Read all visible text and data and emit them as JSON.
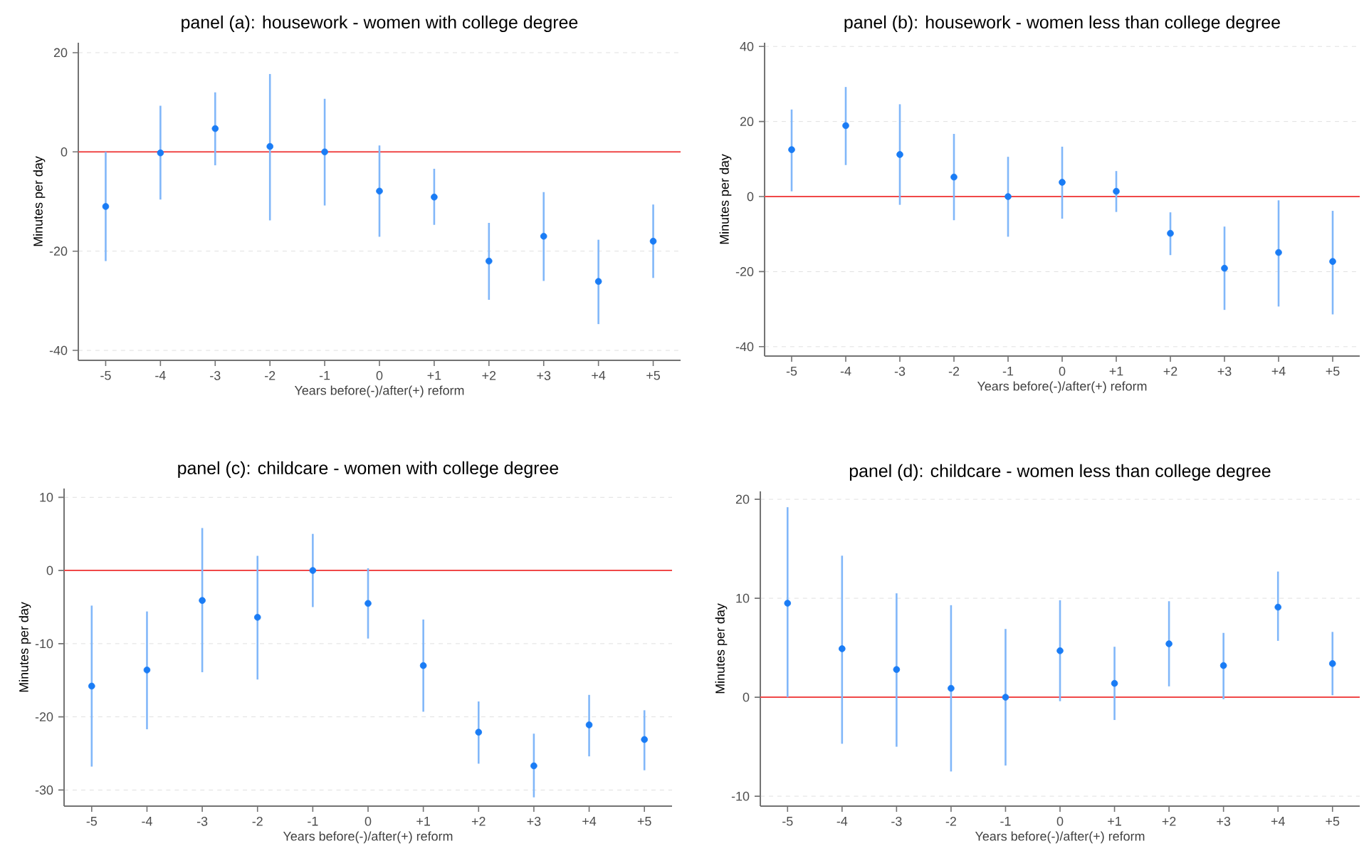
{
  "chart_data": [
    {
      "type": "scatter",
      "title": "panel (a): housework - women with college degree",
      "xlabel": "Years before(-)/after(+) reform",
      "ylabel": "Minutes per day",
      "categories": [
        "-5",
        "-4",
        "-3",
        "-2",
        "-1",
        "0",
        "+1",
        "+2",
        "+3",
        "+4",
        "+5"
      ],
      "series": [
        {
          "color": "#1a7cf5",
          "values": [
            -11,
            -0.2,
            4.7,
            1.1,
            0,
            -7.9,
            -9.1,
            -22,
            -17,
            -26.1,
            -18
          ],
          "errors": [
            [
              -22,
              0
            ],
            [
              -9.6,
              9.3
            ],
            [
              -2.7,
              12
            ],
            [
              -13.8,
              15.7
            ],
            [
              -10.8,
              10.7
            ],
            [
              -17.1,
              1.3
            ],
            [
              -14.7,
              -3.4
            ],
            [
              -29.8,
              -14.3
            ],
            [
              -26,
              -8.1
            ],
            [
              -34.7,
              -17.7
            ],
            [
              -25.4,
              -10.6
            ]
          ]
        }
      ],
      "ylim": [
        -42,
        22
      ],
      "yticks": [
        -40,
        -20,
        0,
        20
      ],
      "ref_lines": [
        {
          "axis": "y",
          "value": 0,
          "color": "#f04848"
        }
      ],
      "grid": "y",
      "marker": "circle"
    },
    {
      "type": "scatter",
      "title": "panel (b): housework - women less than college degree",
      "xlabel": "Years before(-)/after(+) reform",
      "ylabel": "Minutes per day",
      "categories": [
        "-5",
        "-4",
        "-3",
        "-2",
        "-1",
        "0",
        "+1",
        "+2",
        "+3",
        "+4",
        "+5"
      ],
      "series": [
        {
          "color": "#1a7cf5",
          "values": [
            12.5,
            18.9,
            11.2,
            5.2,
            0,
            3.8,
            1.4,
            -9.8,
            -19.1,
            -14.9,
            -17.3
          ],
          "errors": [
            [
              1.4,
              23.2
            ],
            [
              8.4,
              29.2
            ],
            [
              -2.2,
              24.6
            ],
            [
              -6.3,
              16.7
            ],
            [
              -10.7,
              10.6
            ],
            [
              -5.9,
              13.3
            ],
            [
              -4.1,
              6.8
            ],
            [
              -15.6,
              -4.2
            ],
            [
              -30.2,
              -8
            ],
            [
              -29.3,
              -1
            ],
            [
              -31.4,
              -3.8
            ]
          ]
        }
      ],
      "ylim": [
        -42.5,
        41
      ],
      "yticks": [
        -40,
        -20,
        0,
        20,
        40
      ],
      "ref_lines": [
        {
          "axis": "y",
          "value": 0,
          "color": "#f04848"
        }
      ],
      "grid": "y",
      "marker": "circle"
    },
    {
      "type": "scatter",
      "title": "panel (c): childcare - women with college degree",
      "xlabel": "Years before(-)/after(+) reform",
      "ylabel": "Minutes per day",
      "categories": [
        "-5",
        "-4",
        "-3",
        "-2",
        "-1",
        "0",
        "+1",
        "+2",
        "+3",
        "+4",
        "+5"
      ],
      "series": [
        {
          "color": "#1a7cf5",
          "values": [
            -15.8,
            -13.6,
            -4.1,
            -6.4,
            0,
            -4.5,
            -13,
            -22.1,
            -26.7,
            -21.1,
            -23.1
          ],
          "errors": [
            [
              -26.8,
              -4.8
            ],
            [
              -21.7,
              -5.6
            ],
            [
              -13.9,
              5.8
            ],
            [
              -14.9,
              2
            ],
            [
              -5,
              5
            ],
            [
              -9.3,
              0.3
            ],
            [
              -19.3,
              -6.7
            ],
            [
              -26.4,
              -17.9
            ],
            [
              -31,
              -22.3
            ],
            [
              -25.4,
              -17
            ],
            [
              -27.3,
              -19.1
            ]
          ]
        }
      ],
      "ylim": [
        -32.2,
        11.2
      ],
      "yticks": [
        -30,
        -20,
        -10,
        0,
        10
      ],
      "ref_lines": [
        {
          "axis": "y",
          "value": 0,
          "color": "#f04848"
        }
      ],
      "grid": "y",
      "marker": "circle"
    },
    {
      "type": "scatter",
      "title": "panel (d): childcare - women less than college degree",
      "xlabel": "Years before(-)/after(+) reform",
      "ylabel": "Minutes per day",
      "categories": [
        "-5",
        "-4",
        "-3",
        "-2",
        "-1",
        "0",
        "+1",
        "+2",
        "+3",
        "+4",
        "+5"
      ],
      "series": [
        {
          "color": "#1a7cf5",
          "values": [
            9.5,
            4.9,
            2.8,
            0.9,
            0,
            4.7,
            1.4,
            5.4,
            3.2,
            9.1,
            3.4
          ],
          "errors": [
            [
              0,
              19.2
            ],
            [
              -4.7,
              14.3
            ],
            [
              -5,
              10.5
            ],
            [
              -7.5,
              9.3
            ],
            [
              -6.9,
              6.9
            ],
            [
              -0.4,
              9.8
            ],
            [
              -2.3,
              5.1
            ],
            [
              1.1,
              9.7
            ],
            [
              -0.2,
              6.5
            ],
            [
              5.7,
              12.7
            ],
            [
              0.2,
              6.6
            ]
          ]
        }
      ],
      "ylim": [
        -11,
        20.8
      ],
      "yticks": [
        -10,
        0,
        10,
        20
      ],
      "ref_lines": [
        {
          "axis": "y",
          "value": 0,
          "color": "#f04848"
        }
      ],
      "grid": "y",
      "marker": "circle"
    }
  ]
}
